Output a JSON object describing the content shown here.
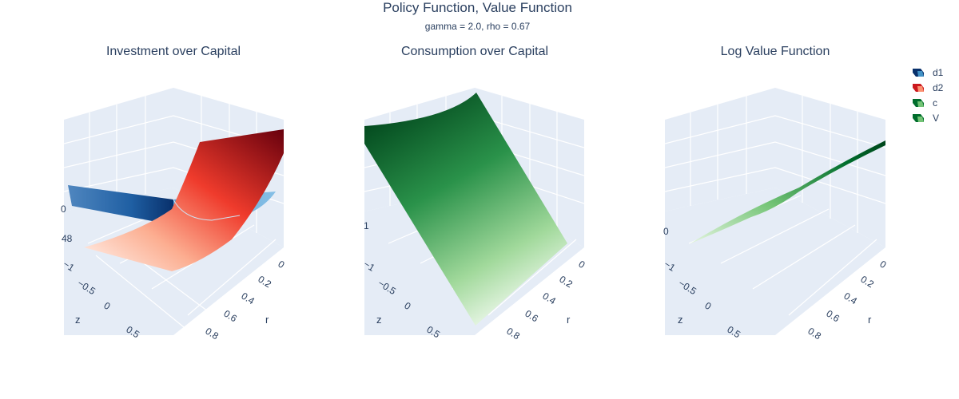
{
  "title": "Policy Function, Value Function",
  "subtitle": "gamma = 2.0, rho = 0.67",
  "colors": {
    "background": "#ffffff",
    "scene_bg": "#e5ecf6",
    "grid": "#ffffff",
    "text": "#2a3f5f"
  },
  "legend": [
    {
      "name": "d1",
      "colors": [
        "#08306b",
        "#4292c6",
        "#9ecae1"
      ]
    },
    {
      "name": "d2",
      "colors": [
        "#67000d",
        "#ef3b2c",
        "#fee0d2"
      ]
    },
    {
      "name": "c",
      "colors": [
        "#00441b",
        "#41ab5d",
        "#c7e9c0"
      ]
    },
    {
      "name": "V",
      "colors": [
        "#00441b",
        "#41ab5d",
        "#c7e9c0"
      ]
    }
  ],
  "chart_data": [
    {
      "type": "surface",
      "title": "Investment over Capital",
      "xlabel": "r",
      "ylabel": "z",
      "r_ticks": [
        "0",
        "0.2",
        "0.4",
        "0.6",
        "0.8"
      ],
      "z_ticks": [
        "−1",
        "−0.5",
        "0",
        "0.5"
      ],
      "v_ticks": [
        "48",
        "0"
      ],
      "colorscale_d1": "Blues",
      "colorscale_d2": "Reds"
    },
    {
      "type": "surface",
      "title": "Consumption over Capital",
      "xlabel": "r",
      "ylabel": "z",
      "r_ticks": [
        "0",
        "0.2",
        "0.4",
        "0.6",
        "0.8"
      ],
      "z_ticks": [
        "−1",
        "−0.5",
        "0",
        "0.5"
      ],
      "v_ticks": [
        "1"
      ],
      "colorscale": "Greens"
    },
    {
      "type": "surface",
      "title": "Log Value Function",
      "xlabel": "r",
      "ylabel": "z",
      "r_ticks": [
        "0",
        "0.2",
        "0.4",
        "0.6",
        "0.8"
      ],
      "z_ticks": [
        "−1",
        "−0.5",
        "0",
        "0.5"
      ],
      "v_ticks": [
        "0"
      ],
      "colorscale": "Greens"
    }
  ]
}
